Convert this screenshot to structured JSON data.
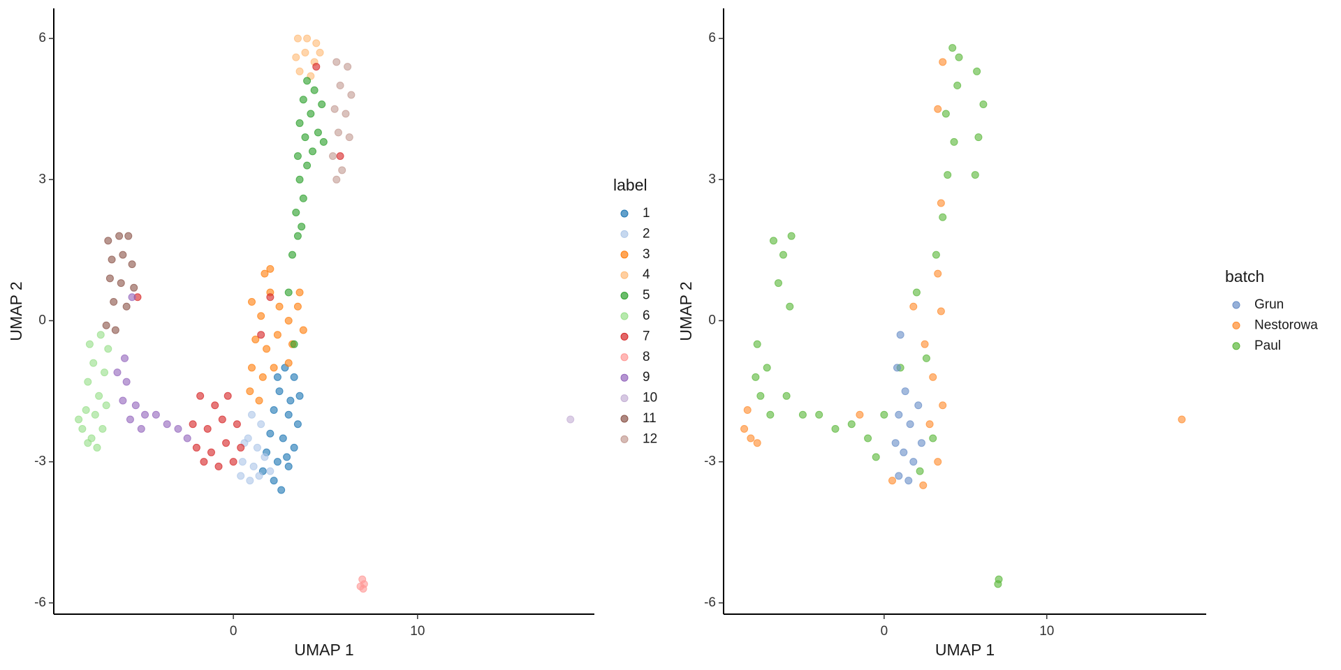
{
  "chart_data": [
    {
      "type": "scatter",
      "x_label": "UMAP 1",
      "y_label": "UMAP 2",
      "legend_title": "label",
      "xlim": [
        -9.75,
        19.6
      ],
      "ylim": [
        -6.24,
        6.64
      ],
      "xticks": [
        0,
        10
      ],
      "yticks": [
        -6,
        -3,
        0,
        3,
        6
      ],
      "series": [
        {
          "name": "1",
          "color": "#1f77b4",
          "x": [
            2.8,
            3.3,
            2.5,
            3.6,
            2.2,
            3.0,
            3.5,
            2.0,
            2.7,
            3.3,
            1.8,
            2.4,
            3.0,
            1.6,
            2.2,
            2.6,
            2.4,
            3.1,
            2.9
          ],
          "y": [
            -1.0,
            -1.2,
            -1.5,
            -1.6,
            -1.9,
            -2.0,
            -2.2,
            -2.4,
            -2.5,
            -2.7,
            -2.8,
            -3.0,
            -3.1,
            -3.2,
            -3.4,
            -3.6,
            -1.2,
            -1.7,
            -2.9
          ]
        },
        {
          "name": "2",
          "color": "#aec7e8",
          "x": [
            1.0,
            1.5,
            0.8,
            1.3,
            0.5,
            1.1,
            0.4,
            0.9,
            1.7,
            0.6,
            1.4,
            2.0
          ],
          "y": [
            -2.0,
            -2.2,
            -2.5,
            -2.7,
            -3.0,
            -3.1,
            -3.3,
            -3.4,
            -2.9,
            -2.6,
            -3.3,
            -3.2
          ]
        },
        {
          "name": "3",
          "color": "#ff7f0e",
          "x": [
            1.0,
            1.5,
            2.0,
            2.5,
            3.0,
            3.5,
            3.8,
            1.2,
            1.8,
            2.4,
            3.2,
            1.0,
            1.6,
            2.2,
            0.9,
            1.4,
            2.0,
            1.7,
            3.6,
            3.0
          ],
          "y": [
            0.4,
            0.1,
            0.6,
            0.3,
            0.0,
            0.3,
            -0.2,
            -0.4,
            -0.6,
            -0.3,
            -0.5,
            -1.0,
            -1.2,
            -1.0,
            -1.5,
            -1.7,
            1.1,
            1.0,
            0.6,
            -0.9
          ]
        },
        {
          "name": "4",
          "color": "#ffbb78",
          "x": [
            3.5,
            4.0,
            4.5,
            3.4,
            3.9,
            4.4,
            3.6,
            4.2,
            4.7
          ],
          "y": [
            6.0,
            6.0,
            5.9,
            5.6,
            5.7,
            5.5,
            5.3,
            5.2,
            5.7
          ]
        },
        {
          "name": "5",
          "color": "#2ca02c",
          "x": [
            3.2,
            3.5,
            3.4,
            3.8,
            3.6,
            4.0,
            3.5,
            4.3,
            3.9,
            4.6,
            3.6,
            4.2,
            4.8,
            3.8,
            4.4,
            4.0,
            3.0,
            3.3,
            4.9,
            3.7
          ],
          "y": [
            1.4,
            1.8,
            2.3,
            2.6,
            3.0,
            3.3,
            3.5,
            3.6,
            3.9,
            4.0,
            4.2,
            4.4,
            4.6,
            4.7,
            4.9,
            5.1,
            0.6,
            -0.5,
            3.8,
            2.0
          ]
        },
        {
          "name": "6",
          "color": "#98df8a",
          "x": [
            -7.8,
            -7.2,
            -7.6,
            -7.0,
            -7.9,
            -7.3,
            -8.0,
            -7.5,
            -6.9,
            -8.2,
            -7.7,
            -7.1,
            -7.9,
            -7.4,
            -6.8,
            -8.4
          ],
          "y": [
            -0.5,
            -0.3,
            -0.9,
            -1.1,
            -1.3,
            -1.6,
            -1.9,
            -2.0,
            -1.8,
            -2.3,
            -2.5,
            -2.3,
            -2.6,
            -2.7,
            -0.6,
            -2.1
          ]
        },
        {
          "name": "7",
          "color": "#d62728",
          "x": [
            -1.8,
            -1.0,
            -0.3,
            -2.2,
            -1.4,
            -0.6,
            0.2,
            -2.0,
            -1.2,
            -0.4,
            0.4,
            -1.6,
            -0.8,
            0.0,
            2.0,
            1.5,
            5.8,
            4.5,
            -5.2
          ],
          "y": [
            -1.6,
            -1.8,
            -1.6,
            -2.2,
            -2.3,
            -2.1,
            -2.2,
            -2.7,
            -2.8,
            -2.6,
            -2.7,
            -3.0,
            -3.1,
            -3.0,
            0.5,
            -0.3,
            3.5,
            5.4,
            0.5
          ]
        },
        {
          "name": "8",
          "color": "#ff9896",
          "x": [
            7.0,
            7.1,
            6.9,
            7.05
          ],
          "y": [
            -5.5,
            -5.6,
            -5.65,
            -5.7
          ]
        },
        {
          "name": "9",
          "color": "#9467bd",
          "x": [
            -6.3,
            -5.8,
            -6.0,
            -5.3,
            -5.6,
            -4.8,
            -4.2,
            -3.6,
            -3.0,
            -2.5,
            -5.0,
            -5.5,
            -5.9
          ],
          "y": [
            -1.1,
            -1.3,
            -1.7,
            -1.8,
            -2.1,
            -2.0,
            -2.0,
            -2.2,
            -2.3,
            -2.5,
            -2.3,
            0.5,
            -0.8
          ]
        },
        {
          "name": "10",
          "color": "#c5b0d5",
          "x": [
            18.3
          ],
          "y": [
            -2.1
          ]
        },
        {
          "name": "11",
          "color": "#8c564b",
          "x": [
            -6.8,
            -6.2,
            -5.7,
            -6.6,
            -6.0,
            -5.5,
            -6.7,
            -6.1,
            -5.4,
            -6.5,
            -5.8,
            -6.9,
            -6.4
          ],
          "y": [
            1.7,
            1.8,
            1.8,
            1.3,
            1.4,
            1.2,
            0.9,
            0.8,
            0.7,
            0.4,
            0.3,
            -0.1,
            -0.2
          ]
        },
        {
          "name": "12",
          "color": "#c49c94",
          "x": [
            5.6,
            6.2,
            5.8,
            6.4,
            5.5,
            6.1,
            5.7,
            6.3,
            5.4,
            5.9,
            5.6
          ],
          "y": [
            5.5,
            5.4,
            5.0,
            4.8,
            4.5,
            4.4,
            4.0,
            3.9,
            3.5,
            3.2,
            3.0
          ]
        }
      ]
    },
    {
      "type": "scatter",
      "x_label": "UMAP 1",
      "y_label": "UMAP 2",
      "legend_title": "batch",
      "xlim": [
        -9.87,
        19.8
      ],
      "ylim": [
        -6.24,
        6.64
      ],
      "xticks": [
        0,
        10
      ],
      "yticks": [
        -6,
        -3,
        0,
        3,
        6
      ],
      "series": [
        {
          "name": "Paul",
          "color": "#5cb83c",
          "x": [
            -7.8,
            -7.2,
            -7.6,
            -7.0,
            -7.9,
            -6.8,
            -6.2,
            -5.7,
            -6.5,
            -5.8,
            -6.0,
            -5.0,
            -4.0,
            -3.0,
            -2.0,
            -1.0,
            0.0,
            -0.5,
            1.0,
            2.0,
            2.6,
            2.2,
            3.0,
            3.2,
            3.6,
            3.9,
            4.3,
            3.8,
            4.5,
            4.2,
            4.6,
            5.7,
            6.1,
            5.8,
            5.6,
            7.0,
            7.05
          ],
          "y": [
            -0.5,
            -1.0,
            -1.6,
            -2.0,
            -1.2,
            1.7,
            1.4,
            1.8,
            0.8,
            0.3,
            -1.6,
            -2.0,
            -2.0,
            -2.3,
            -2.2,
            -2.5,
            -2.0,
            -2.9,
            -1.0,
            0.6,
            -0.8,
            -3.2,
            -2.5,
            1.4,
            2.2,
            3.1,
            3.8,
            4.4,
            5.0,
            5.8,
            5.6,
            5.3,
            4.6,
            3.9,
            3.1,
            -5.6,
            -5.5
          ]
        },
        {
          "name": "Nestorowa",
          "color": "#ff8c2e",
          "x": [
            -8.6,
            -8.2,
            -7.8,
            -8.4,
            2.5,
            3.0,
            3.5,
            2.8,
            3.3,
            2.4,
            3.6,
            1.8,
            3.3,
            3.5,
            3.3,
            3.6,
            -1.5,
            0.5,
            18.3
          ],
          "y": [
            -2.3,
            -2.5,
            -2.6,
            -1.9,
            -0.5,
            -1.2,
            0.2,
            -2.2,
            -3.0,
            -3.5,
            -1.8,
            0.3,
            1.0,
            2.5,
            4.5,
            5.5,
            -2.0,
            -3.4,
            -2.1
          ]
        },
        {
          "name": "Grun",
          "color": "#6a8fc8",
          "x": [
            0.8,
            1.3,
            0.9,
            1.6,
            0.7,
            1.2,
            1.8,
            0.9,
            1.5,
            2.1,
            1.0,
            2.3
          ],
          "y": [
            -1.0,
            -1.5,
            -2.0,
            -2.2,
            -2.6,
            -2.8,
            -3.0,
            -3.3,
            -3.4,
            -1.8,
            -0.3,
            -2.6
          ]
        }
      ],
      "legend_order": [
        "Grun",
        "Nestorowa",
        "Paul"
      ]
    }
  ]
}
